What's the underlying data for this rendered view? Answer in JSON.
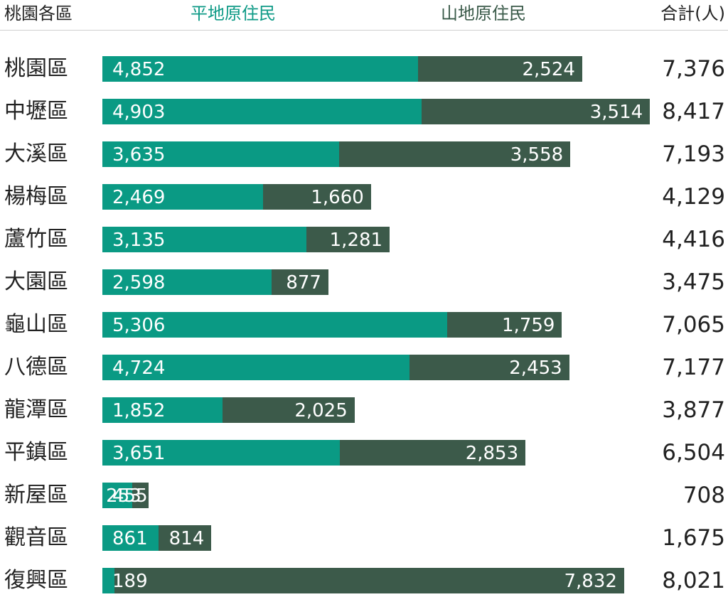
{
  "header": {
    "region_label": "桃園各區",
    "plain_label": "平地原住民",
    "mountain_label": "山地原住民",
    "total_label": "合計(人)"
  },
  "colors": {
    "plain": "#0a9a84",
    "mountain": "#3c5a4a",
    "plain_header": "#0e9a86",
    "mountain_header": "#3a5a49"
  },
  "chart_data": {
    "type": "bar",
    "stacked": true,
    "orientation": "horizontal",
    "categories": [
      "桃園區",
      "中壢區",
      "大溪區",
      "楊梅區",
      "蘆竹區",
      "大園區",
      "龜山區",
      "八德區",
      "龍潭區",
      "平鎮區",
      "新屋區",
      "觀音區",
      "復興區"
    ],
    "series": [
      {
        "name": "平地原住民",
        "values": [
          4852,
          4903,
          3635,
          2469,
          3135,
          2598,
          5306,
          4724,
          1852,
          3651,
          455,
          861,
          189
        ]
      },
      {
        "name": "山地原住民",
        "values": [
          2524,
          3514,
          3558,
          1660,
          1281,
          877,
          1759,
          2453,
          2025,
          2853,
          253,
          814,
          7832
        ]
      }
    ],
    "totals": [
      7376,
      8417,
      7193,
      4129,
      4416,
      3475,
      7065,
      7177,
      3877,
      6504,
      708,
      1675,
      8021
    ],
    "value_labels": {
      "plain": [
        "4,852",
        "4,903",
        "3,635",
        "2,469",
        "3,135",
        "2,598",
        "5,306",
        "4,724",
        "1,852",
        "3,651",
        "455",
        "861",
        "189"
      ],
      "mountain": [
        "2,524",
        "3,514",
        "3,558",
        "1,660",
        "1,281",
        "877",
        "1,759",
        "2,453",
        "2,025",
        "2,853",
        "253",
        "814",
        "7,832"
      ],
      "totals": [
        "7,376",
        "8,417",
        "7,193",
        "4,129",
        "4,416",
        "3,475",
        "7,065",
        "7,177",
        "3,877",
        "6,504",
        "708",
        "1,675",
        "8,021"
      ]
    },
    "title": "",
    "xlabel": "",
    "ylabel": "",
    "grid": false,
    "legend": "top"
  }
}
